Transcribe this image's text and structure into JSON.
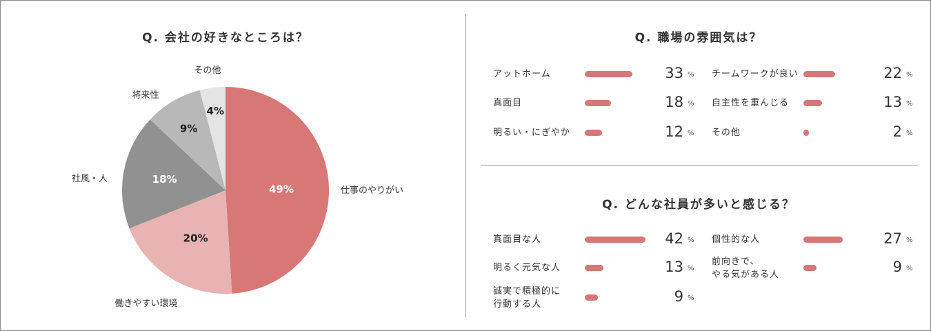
{
  "left_title": "Q. 会社の好きなところは？",
  "right_top_title": "Q. 職場の雰囲気は？",
  "right_bottom_title": "Q. どんな社員が多いと感じる？",
  "colors": {
    "pie": [
      "#d77877",
      "#e9b2b3",
      "#919191",
      "#b8b8b8",
      "#e4e4e4"
    ],
    "bar": "#d47878"
  },
  "chart_data": [
    {
      "type": "pie",
      "title": "Q. 会社の好きなところは？",
      "unit": "%",
      "slices": [
        {
          "label": "仕事のやりがい",
          "value": 49,
          "display": "49%"
        },
        {
          "label": "働きやすい環境",
          "value": 20,
          "display": "20%"
        },
        {
          "label": "社風・人",
          "value": 18,
          "display": "18%"
        },
        {
          "label": "将来性",
          "value": 9,
          "display": "9%"
        },
        {
          "label": "その他",
          "value": 4,
          "display": "4%"
        }
      ]
    },
    {
      "type": "bar",
      "title": "Q. 職場の雰囲気は？",
      "unit": "%",
      "categories": [
        "アットホーム",
        "真面目",
        "明るい・にぎやか",
        "チームワークが良い",
        "自主性を重んじる",
        "その他"
      ],
      "values": [
        33,
        18,
        12,
        22,
        13,
        2
      ]
    },
    {
      "type": "bar",
      "title": "Q. どんな社員が多いと感じる？",
      "unit": "%",
      "categories": [
        "真面目な人",
        "明るく元気な人",
        "誠実で積極的に\n行動する人",
        "個性的な人",
        "前向きで、\nやる気がある人"
      ],
      "values": [
        42,
        13,
        9,
        27,
        9
      ]
    }
  ]
}
